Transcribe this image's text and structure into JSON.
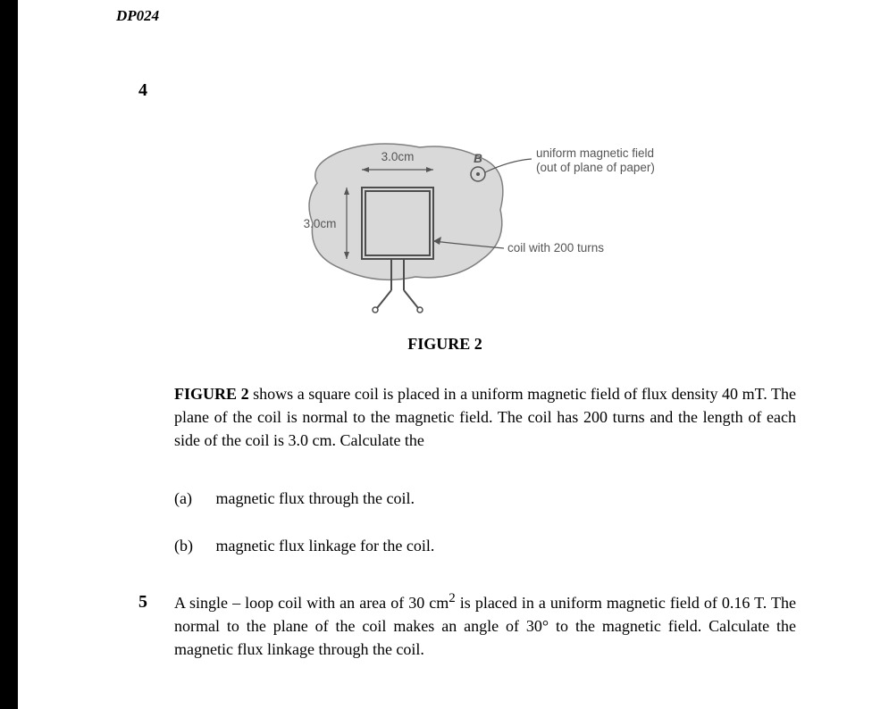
{
  "doc_code": "DP024",
  "question4": {
    "number": "4",
    "figure": {
      "label_top": "3.0cm",
      "label_left": "3.0cm",
      "b_symbol": "B",
      "annotation1_line1": "uniform magnetic field",
      "annotation1_line2": "(out of plane of paper)",
      "annotation2": "coil with 200 turns",
      "caption": "FIGURE 2",
      "colors": {
        "blob_fill": "#d9d9d9",
        "blob_stroke": "#808080",
        "coil_stroke": "#4d4d4d",
        "label_color": "#555555"
      }
    },
    "description": "<b>FIGURE 2</b> shows a square coil is placed in a uniform magnetic field of flux density 40 mT. The plane of the coil is normal to the magnetic field. The coil has 200 turns and the length of each side of the coil is 3.0 cm. Calculate the",
    "parts": {
      "a_label": "(a)",
      "a_text": "magnetic flux through the coil.",
      "b_label": "(b)",
      "b_text": "magnetic flux linkage for the coil."
    }
  },
  "question5": {
    "number": "5",
    "text": "A single – loop coil with an area of  30 cm<sup>2</sup> is placed in a uniform magnetic field of 0.16 T. The normal to the plane of the coil makes an angle of 30° to the magnetic field. Calculate the magnetic flux linkage through the coil."
  }
}
